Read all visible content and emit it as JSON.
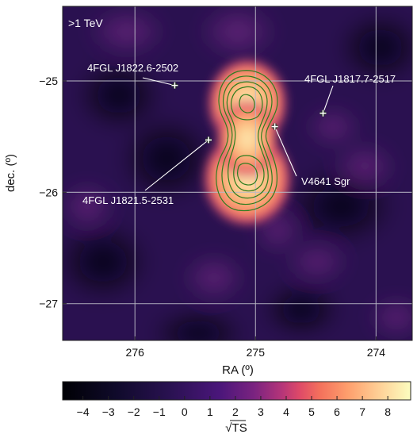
{
  "chart_data": {
    "type": "heatmap",
    "energy_label": ">1 TeV",
    "xlabel": "RA (º)",
    "ylabel": "dec. (º)",
    "colorbar_label": "√TS",
    "xlim": [
      276.6,
      273.7
    ],
    "ylim": [
      -27.33,
      -24.33
    ],
    "x_ticks": [
      276,
      275,
      274
    ],
    "y_ticks": [
      -25,
      -26,
      -27
    ],
    "colorbar_ticks": [
      -4,
      -3,
      -2,
      -1,
      0,
      1,
      2,
      3,
      4,
      5,
      6,
      7,
      8
    ],
    "colorbar_range": [
      -4.8,
      8.9
    ],
    "grid": true,
    "sources": [
      {
        "name": "4FGL J1822.6-2502",
        "ra": 275.67,
        "dec": -25.04
      },
      {
        "name": "4FGL J1821.5-2531",
        "ra": 275.39,
        "dec": -25.53
      },
      {
        "name": "4FGL J1817.7-2517",
        "ra": 274.44,
        "dec": -25.29
      },
      {
        "name": "V4641 Sgr",
        "ra": 274.84,
        "dec": -25.41
      }
    ],
    "emission_peaks": [
      {
        "ra": 274.82,
        "dec": -25.2,
        "value": 8.5
      },
      {
        "ra": 274.85,
        "dec": -25.82,
        "value": 8.5
      }
    ]
  },
  "colors": {
    "colormap": [
      "#000004",
      "#3b0f70",
      "#8c2981",
      "#de4968",
      "#fe9f6d",
      "#fcfdbf"
    ],
    "contour": "#2e7d1f",
    "grid": "#b9b9c6"
  }
}
